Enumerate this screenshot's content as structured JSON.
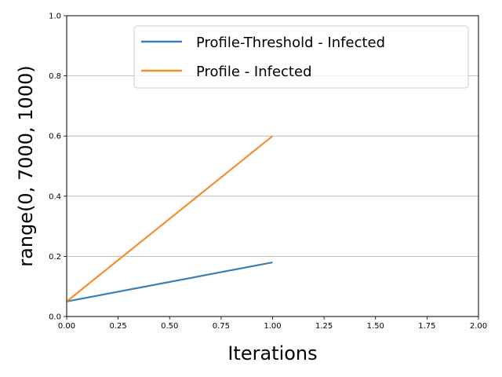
{
  "chart_data": {
    "type": "line",
    "title": "",
    "xlabel": "Iterations",
    "ylabel": "range(0, 7000, 1000)",
    "xlim": [
      0,
      2
    ],
    "ylim": [
      0,
      1
    ],
    "xticks": [
      0,
      0.25,
      0.5,
      0.75,
      1.0,
      1.25,
      1.5,
      1.75,
      2.0
    ],
    "xtick_labels": [
      "0.00",
      "0.25",
      "0.50",
      "0.75",
      "1.00",
      "1.25",
      "1.50",
      "1.75",
      "2.00"
    ],
    "yticks": [
      0,
      0.2,
      0.4,
      0.6,
      0.8,
      1.0
    ],
    "ytick_labels": [
      "0.0",
      "0.2",
      "0.4",
      "0.6",
      "0.8",
      "1.0"
    ],
    "grid": "horizontal",
    "legend_position": "top-right",
    "series": [
      {
        "name": "Profile-Threshold - Infected",
        "color": "#3a7fb5",
        "x": [
          0,
          1
        ],
        "y": [
          0.05,
          0.18
        ]
      },
      {
        "name": "Profile - Infected",
        "color": "#f28e2b",
        "x": [
          0,
          1
        ],
        "y": [
          0.05,
          0.6
        ]
      }
    ]
  }
}
